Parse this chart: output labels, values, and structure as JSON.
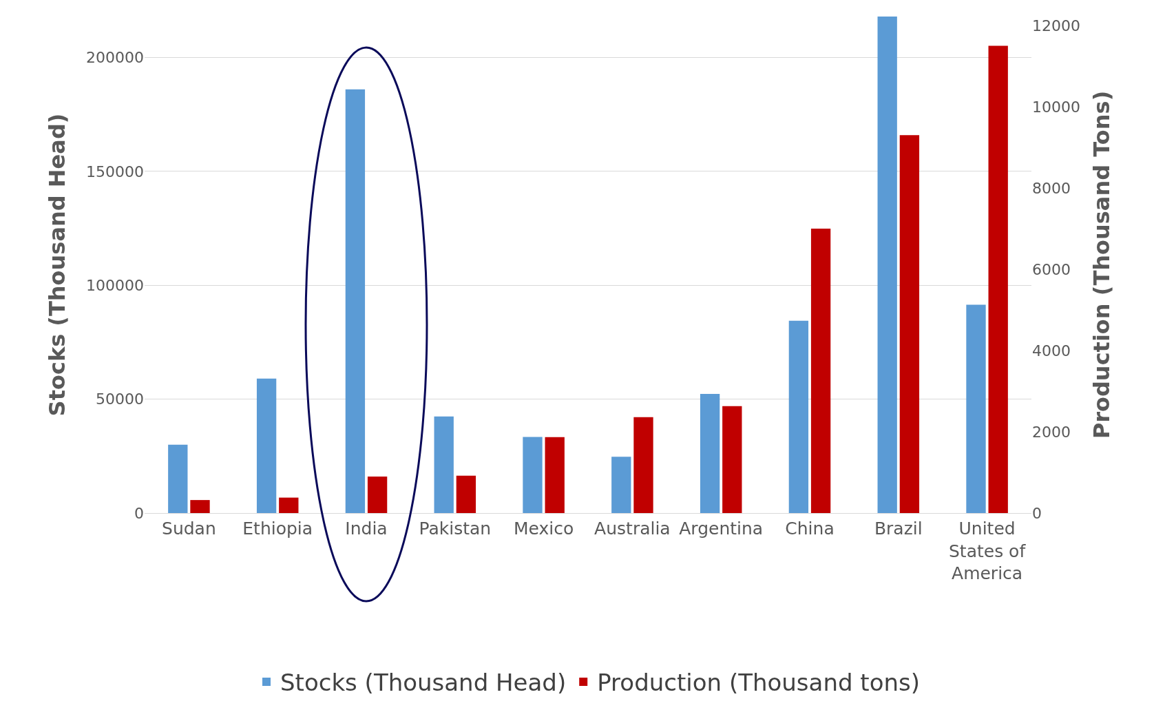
{
  "chart_data": {
    "type": "bar",
    "ylabel": "Stocks (Thousand Head)",
    "y2label": "Production (Thousand Tons)",
    "categories": [
      "Sudan",
      "Ethiopia",
      "India",
      "Pakistan",
      "Mexico",
      "Australia",
      "Argentina",
      "China",
      "Brazil",
      "United States of America"
    ],
    "series": [
      {
        "name": "Stocks (Thousand Head)",
        "color": "#5b9bd5",
        "values": [
          30000,
          59000,
          186000,
          42400,
          33400,
          24700,
          52300,
          84400,
          218000,
          91500
        ]
      },
      {
        "name": "Production (Thousand tons)",
        "color": "#c00000",
        "axis": "y2",
        "values": [
          320,
          380,
          900,
          920,
          1870,
          2360,
          2630,
          7000,
          9300,
          11500
        ]
      }
    ],
    "ylim": [
      0,
      218000
    ],
    "yticks": [
      0,
      50000,
      100000,
      150000,
      200000
    ],
    "y2lim": [
      0,
      12220
    ],
    "y2ticks": [
      0,
      2000,
      4000,
      6000,
      8000,
      10000,
      12000
    ],
    "grid": "y",
    "legend": "bottom"
  }
}
